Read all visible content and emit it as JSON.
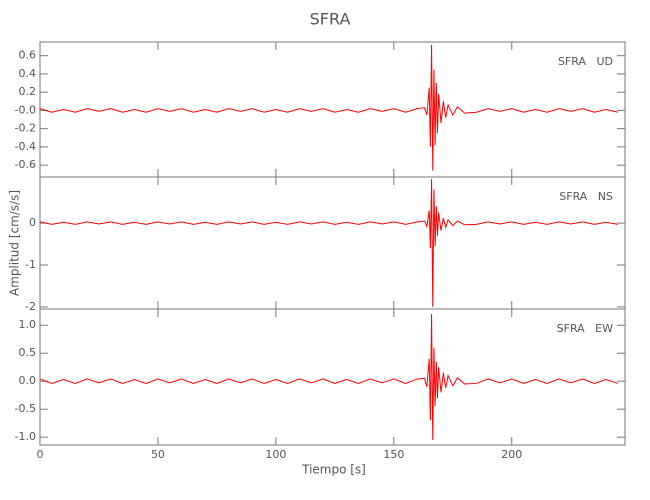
{
  "chart_data": [
    {
      "type": "line",
      "title": "SFRA",
      "label": "SFRA   UD",
      "color": "#ff0000",
      "x": [
        0,
        5,
        10,
        15,
        20,
        25,
        30,
        35,
        40,
        45,
        50,
        55,
        60,
        65,
        70,
        75,
        80,
        85,
        90,
        95,
        100,
        105,
        110,
        115,
        120,
        125,
        130,
        135,
        140,
        145,
        150,
        155,
        160,
        163,
        164,
        165,
        165.5,
        166,
        166.5,
        167,
        167.5,
        168,
        168.5,
        169,
        170,
        171,
        172,
        173,
        175,
        177,
        180,
        185,
        190,
        195,
        200,
        205,
        210,
        215,
        220,
        225,
        230,
        235,
        240,
        245
      ],
      "values": [
        0.02,
        -0.02,
        0.01,
        -0.02,
        0.02,
        -0.01,
        0.02,
        -0.02,
        0.01,
        -0.02,
        0.02,
        -0.01,
        0.02,
        -0.02,
        0.01,
        -0.02,
        0.02,
        -0.01,
        0.02,
        -0.02,
        0.01,
        -0.02,
        0.02,
        -0.01,
        0.02,
        -0.02,
        0.01,
        -0.02,
        0.02,
        -0.01,
        0.02,
        -0.02,
        0.02,
        0.03,
        -0.05,
        0.25,
        -0.4,
        0.72,
        -0.66,
        0.45,
        -0.38,
        0.3,
        -0.25,
        0.18,
        -0.14,
        0.1,
        -0.08,
        0.06,
        -0.05,
        0.04,
        -0.03,
        -0.02,
        0.02,
        -0.01,
        0.02,
        -0.02,
        0.01,
        -0.02,
        0.02,
        -0.01,
        0.02,
        -0.02,
        0.01,
        -0.02
      ],
      "xlim": [
        0,
        248
      ],
      "ylim": [
        -0.73,
        0.75
      ],
      "yticks": [
        0.6,
        0.4,
        0.2,
        {
          "value": 0,
          "label": "-0.0"
        },
        -0.2,
        -0.4,
        -0.6
      ]
    },
    {
      "type": "line",
      "label": "SFRA   NS",
      "y_label": "Amplitud [cm/s/s]",
      "color": "#ff0000",
      "x": [
        0,
        5,
        10,
        15,
        20,
        25,
        30,
        35,
        40,
        45,
        50,
        55,
        60,
        65,
        70,
        75,
        80,
        85,
        90,
        95,
        100,
        105,
        110,
        115,
        120,
        125,
        130,
        135,
        140,
        145,
        150,
        155,
        160,
        163,
        164,
        165,
        165.5,
        166,
        166.5,
        167,
        167.5,
        168,
        168.5,
        169,
        170,
        171,
        172,
        173,
        175,
        177,
        180,
        185,
        190,
        195,
        200,
        205,
        210,
        215,
        220,
        225,
        230,
        235,
        240,
        245
      ],
      "values": [
        0.03,
        -0.03,
        0.02,
        -0.03,
        0.03,
        -0.02,
        0.03,
        -0.03,
        0.02,
        -0.03,
        0.03,
        -0.02,
        0.03,
        -0.03,
        0.02,
        -0.03,
        0.03,
        -0.02,
        0.03,
        -0.03,
        0.02,
        -0.03,
        0.03,
        -0.02,
        0.03,
        -0.03,
        0.02,
        -0.03,
        0.03,
        -0.02,
        0.03,
        -0.03,
        0.03,
        0.05,
        -0.08,
        0.3,
        -0.6,
        1.05,
        -2.0,
        0.8,
        -0.55,
        0.4,
        -0.3,
        0.25,
        -0.18,
        0.12,
        -0.1,
        0.08,
        -0.06,
        0.05,
        -0.04,
        -0.03,
        0.03,
        -0.02,
        0.03,
        -0.03,
        0.02,
        -0.03,
        0.03,
        -0.02,
        0.03,
        -0.03,
        0.02,
        -0.03
      ],
      "xlim": [
        0,
        248
      ],
      "ylim": [
        -2.05,
        1.1
      ],
      "yticks": [
        0,
        -1,
        -2
      ]
    },
    {
      "type": "line",
      "label": "SFRA   EW",
      "x_label": "Tiempo [s]",
      "color": "#ff0000",
      "x": [
        0,
        5,
        10,
        15,
        20,
        25,
        30,
        35,
        40,
        45,
        50,
        55,
        60,
        65,
        70,
        75,
        80,
        85,
        90,
        95,
        100,
        105,
        110,
        115,
        120,
        125,
        130,
        135,
        140,
        145,
        150,
        155,
        160,
        163,
        164,
        165,
        165.5,
        166,
        166.5,
        167,
        167.5,
        168,
        168.5,
        169,
        170,
        171,
        172,
        173,
        175,
        177,
        180,
        185,
        190,
        195,
        200,
        205,
        210,
        215,
        220,
        225,
        230,
        235,
        240,
        245
      ],
      "values": [
        0.04,
        -0.04,
        0.03,
        -0.04,
        0.04,
        -0.03,
        0.04,
        -0.04,
        0.03,
        -0.04,
        0.04,
        -0.03,
        0.04,
        -0.04,
        0.03,
        -0.04,
        0.04,
        -0.03,
        0.04,
        -0.04,
        0.03,
        -0.04,
        0.04,
        -0.03,
        0.04,
        -0.04,
        0.03,
        -0.04,
        0.04,
        -0.03,
        0.04,
        -0.04,
        0.04,
        0.05,
        -0.1,
        0.4,
        -0.7,
        1.2,
        -1.05,
        0.6,
        -0.45,
        0.35,
        -0.3,
        0.25,
        -0.2,
        0.15,
        -0.12,
        0.1,
        -0.08,
        0.06,
        -0.05,
        -0.04,
        0.04,
        -0.03,
        0.04,
        -0.04,
        0.03,
        -0.04,
        0.04,
        -0.03,
        0.04,
        -0.04,
        0.03,
        -0.04
      ],
      "xlim": [
        0,
        248
      ],
      "ylim": [
        -1.14,
        1.29
      ],
      "xticks": [
        0,
        50,
        100,
        150,
        200
      ],
      "yticks": [
        {
          "value": 1,
          "label": "1.0"
        },
        0.5,
        {
          "value": 0,
          "label": "0.0"
        },
        -0.5,
        {
          "value": -1,
          "label": "-1.0"
        }
      ]
    }
  ]
}
